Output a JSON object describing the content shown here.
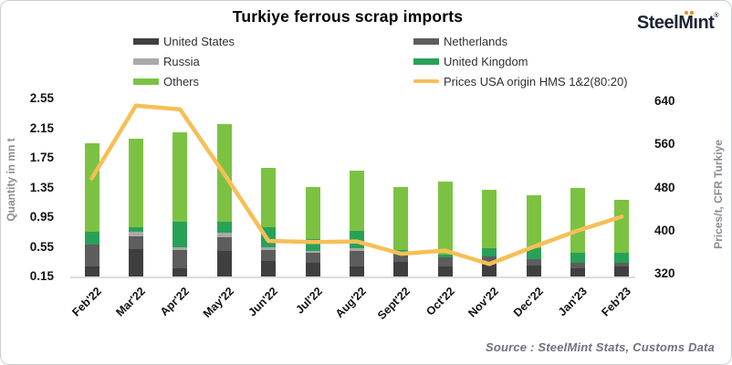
{
  "header": {
    "title": "Turkiye ferrous scrap imports",
    "logo": {
      "text": "SteelMint",
      "dot_color": "#f0941d",
      "text_color": "#1d2433",
      "registered_mark": "®"
    }
  },
  "legend": {
    "columns": [
      {
        "items": [
          {
            "label": "United States",
            "color": "#3f3f3f",
            "type": "swatch"
          },
          {
            "label": "Russia",
            "color": "#a9a9a9",
            "type": "swatch"
          },
          {
            "label": "Others",
            "color": "#7cc242",
            "type": "swatch"
          }
        ]
      },
      {
        "items": [
          {
            "label": "Netherlands",
            "color": "#5d5d5d",
            "type": "swatch"
          },
          {
            "label": "United Kingdom",
            "color": "#28a158",
            "type": "swatch"
          },
          {
            "label": "Prices USA origin HMS 1&2(80:20)",
            "color": "#f6bf57",
            "type": "line"
          }
        ]
      }
    ]
  },
  "chart_data": {
    "type": "bar",
    "subtype": "stacked-columns-with-line",
    "title": "Turkiye ferrous scrap imports",
    "categories": [
      "Feb'22",
      "Mar'22",
      "Apr'22",
      "May'22",
      "Jun'22",
      "Jul'22",
      "Aug'22",
      "Sept'22",
      "Oct'22",
      "Nov'22",
      "Dec'22",
      "Jan'23",
      "Feb'23"
    ],
    "series": [
      {
        "name": "United States",
        "color": "#3f3f3f",
        "values": [
          0.29,
          0.52,
          0.26,
          0.5,
          0.36,
          0.34,
          0.29,
          0.35,
          0.29,
          0.32,
          0.3,
          0.26,
          0.29
        ]
      },
      {
        "name": "Netherlands",
        "color": "#5d5d5d",
        "values": [
          0.29,
          0.17,
          0.25,
          0.18,
          0.15,
          0.13,
          0.2,
          0.11,
          0.12,
          0.1,
          0.09,
          0.07,
          0.04
        ]
      },
      {
        "name": "Russia",
        "color": "#a9a9a9",
        "values": [
          0.0,
          0.06,
          0.04,
          0.06,
          0.04,
          0.03,
          0.04,
          0.0,
          0.0,
          0.0,
          0.0,
          0.0,
          0.0
        ]
      },
      {
        "name": "United Kingdom",
        "color": "#28a158",
        "values": [
          0.17,
          0.07,
          0.34,
          0.15,
          0.26,
          0.15,
          0.24,
          0.05,
          0.04,
          0.11,
          0.14,
          0.14,
          0.14
        ]
      },
      {
        "name": "Others",
        "color": "#7cc242",
        "values": [
          1.2,
          1.19,
          1.2,
          1.31,
          0.81,
          0.71,
          0.81,
          0.85,
          0.98,
          0.79,
          0.72,
          0.87,
          0.72
        ]
      }
    ],
    "line_series": {
      "name": "Prices USA origin HMS 1&2(80:20)",
      "color": "#f6bf57",
      "axis": "right",
      "values": [
        497,
        632,
        625,
        505,
        381,
        379,
        380,
        357,
        363,
        338,
        370,
        400,
        426
      ]
    },
    "left_axis": {
      "label": "Quantity in mn t",
      "min": 0.15,
      "max": 2.55,
      "step": 0.4,
      "decimals": 2
    },
    "right_axis": {
      "label": "Prices/t, CFR Turkiye",
      "min": 320,
      "max": 640,
      "step": 80,
      "decimals": 0
    },
    "grid": false,
    "legend_position": "top"
  },
  "footer": {
    "source": "Source : SteelMint  Stats, Customs Data"
  }
}
